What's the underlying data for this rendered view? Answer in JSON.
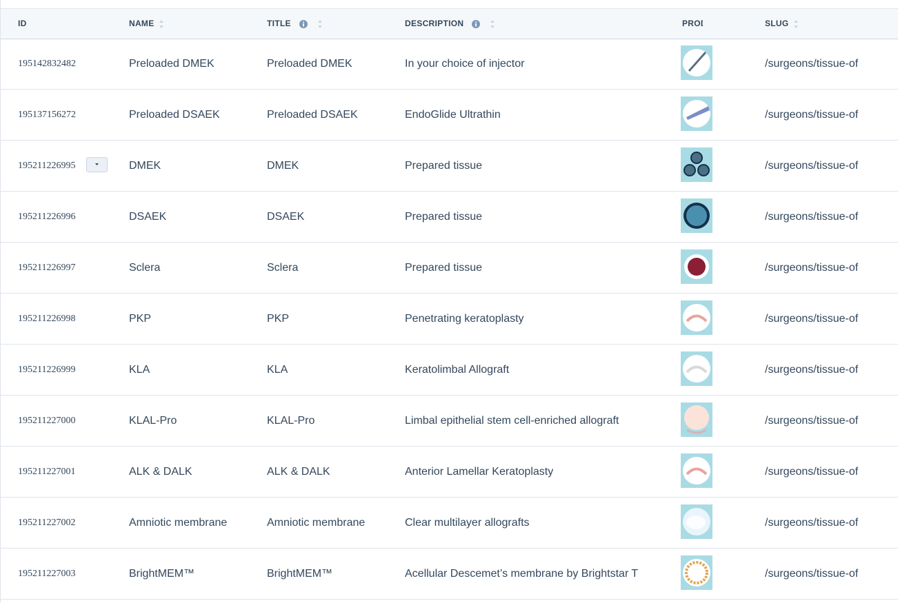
{
  "table": {
    "columns": [
      "ID",
      "NAME",
      "TITLE",
      "DESCRIPTION",
      "PROD",
      "SLUG"
    ],
    "rows": [
      {
        "id": "195142832482",
        "name": "Preloaded DMEK",
        "title": "Preloaded DMEK",
        "description": "In your choice of injector",
        "slug": "/surgeons/tissue-of"
      },
      {
        "id": "195137156272",
        "name": "Preloaded DSAEK",
        "title": "Preloaded DSAEK",
        "description": "EndoGlide Ultrathin",
        "slug": "/surgeons/tissue-of"
      },
      {
        "id": "195211226995",
        "name": "DMEK",
        "title": "DMEK",
        "description": "Prepared tissue",
        "slug": "/surgeons/tissue-of"
      },
      {
        "id": "195211226996",
        "name": "DSAEK",
        "title": "DSAEK",
        "description": "Prepared tissue",
        "slug": "/surgeons/tissue-of"
      },
      {
        "id": "195211226997",
        "name": "Sclera",
        "title": "Sclera",
        "description": "Prepared tissue",
        "slug": "/surgeons/tissue-of"
      },
      {
        "id": "195211226998",
        "name": "PKP",
        "title": "PKP",
        "description": "Penetrating keratoplasty",
        "slug": "/surgeons/tissue-of"
      },
      {
        "id": "195211226999",
        "name": "KLA",
        "title": "KLA",
        "description": "Keratolimbal Allograft",
        "slug": "/surgeons/tissue-of"
      },
      {
        "id": "195211227000",
        "name": "KLAL-Pro",
        "title": "KLAL-Pro",
        "description": "Limbal epithelial stem cell-enriched allograft",
        "slug": "/surgeons/tissue-of"
      },
      {
        "id": "195211227001",
        "name": "ALK & DALK",
        "title": "ALK & DALK",
        "description": "Anterior Lamellar Keratoplasty",
        "slug": "/surgeons/tissue-of"
      },
      {
        "id": "195211227002",
        "name": "Amniotic membrane",
        "title": "Amniotic membrane",
        "description": "Clear multilayer allografts",
        "slug": "/surgeons/tissue-of"
      },
      {
        "id": "195211227003",
        "name": "BrightMEM™",
        "title": "BrightMEM™",
        "description": "Acellular Descemet’s membrane by Brightstar T",
        "slug": "/surgeons/tissue-of"
      }
    ]
  }
}
